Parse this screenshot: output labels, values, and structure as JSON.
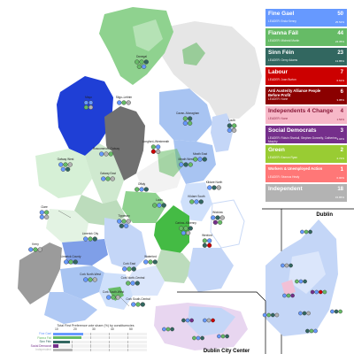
{
  "legend": {
    "parties": [
      {
        "name": "Fine Gael",
        "leader": "LEADER: Enda Kenny",
        "seats": "50",
        "vote": "25.52%",
        "color": "#6699ff"
      },
      {
        "name": "Fianna Fáil",
        "leader": "LEADER: Micheál Martin",
        "seats": "44",
        "vote": "24.35%",
        "color": "#66bb66"
      },
      {
        "name": "Sinn Féin",
        "leader": "LEADER: Gerry Adams",
        "seats": "23",
        "vote": "13.85%",
        "color": "#326760"
      },
      {
        "name": "Labour",
        "leader": "LEADER: Joan Burton",
        "seats": "7",
        "vote": "6.61%",
        "color": "#cc0000"
      },
      {
        "name": "Anti Austerity Alliance People Before Profit",
        "leader": "LEADER: None",
        "seats": "6",
        "vote": "3.95%",
        "color": "#8b0000"
      },
      {
        "name": "Independents 4 Change",
        "leader": "LEADER: None",
        "seats": "4",
        "vote": "1.54%",
        "color": "#f7b8c8",
        "text_color": "#8a1a3a"
      },
      {
        "name": "Social Democrats",
        "leader": "LEADER: Róisín Shortall, Stephen Donnelly, Catherine Murphy",
        "seats": "3",
        "vote": "3.04%",
        "color": "#752f8b"
      },
      {
        "name": "Green",
        "leader": "LEADER: Eamon Ryan",
        "seats": "2",
        "vote": "2.72%",
        "color": "#99cc33"
      },
      {
        "name": "Workers & Unemployed Action",
        "leader": "LEADER: Séamus Healy",
        "seats": "1",
        "vote": "0.00%",
        "color": "#ff7777"
      },
      {
        "name": "Independent",
        "leader": "",
        "seats": "18",
        "vote": "15.85%",
        "color": "#b3b3b3"
      }
    ]
  },
  "insets": {
    "dublin_title": "Dublin",
    "dublin_city_title": "Dublin City Center"
  },
  "constituencies": [
    {
      "name": "Donegal"
    },
    {
      "name": "Sligo–Leitrim"
    },
    {
      "name": "Cavan–Monaghan"
    },
    {
      "name": "Louth"
    },
    {
      "name": "Mayo"
    },
    {
      "name": "Roscommon–Galway"
    },
    {
      "name": "Longford–Westmeath"
    },
    {
      "name": "Meath East"
    },
    {
      "name": "Meath West"
    },
    {
      "name": "Galway West"
    },
    {
      "name": "Galway East"
    },
    {
      "name": "Offaly"
    },
    {
      "name": "Laois"
    },
    {
      "name": "Kildare North"
    },
    {
      "name": "Kildare South"
    },
    {
      "name": "Wicklow"
    },
    {
      "name": "Clare"
    },
    {
      "name": "Tipperary"
    },
    {
      "name": "Carlow–Kilkenny"
    },
    {
      "name": "Wexford"
    },
    {
      "name": "Kerry"
    },
    {
      "name": "Limerick City"
    },
    {
      "name": "Limerick County"
    },
    {
      "name": "Waterford"
    },
    {
      "name": "Cork North-West"
    },
    {
      "name": "Cork East"
    },
    {
      "name": "Cork North-Central"
    },
    {
      "name": "Cork South-Central"
    },
    {
      "name": "Cork South-West"
    }
  ],
  "chart": {
    "title": "Total First Preference vote share (%) by constituencies",
    "ticks": [
      "10",
      "20",
      "30",
      "40",
      "50"
    ],
    "series": [
      {
        "name": "Fine Gael",
        "color": "#6699ff"
      },
      {
        "name": "Fianna Fáil",
        "color": "#66bb66"
      },
      {
        "name": "Sinn Féin",
        "color": "#326760"
      },
      {
        "name": "Social Democrat",
        "color": "#752f8b"
      },
      {
        "name": "Independent",
        "color": "#b3b3b3"
      }
    ]
  }
}
